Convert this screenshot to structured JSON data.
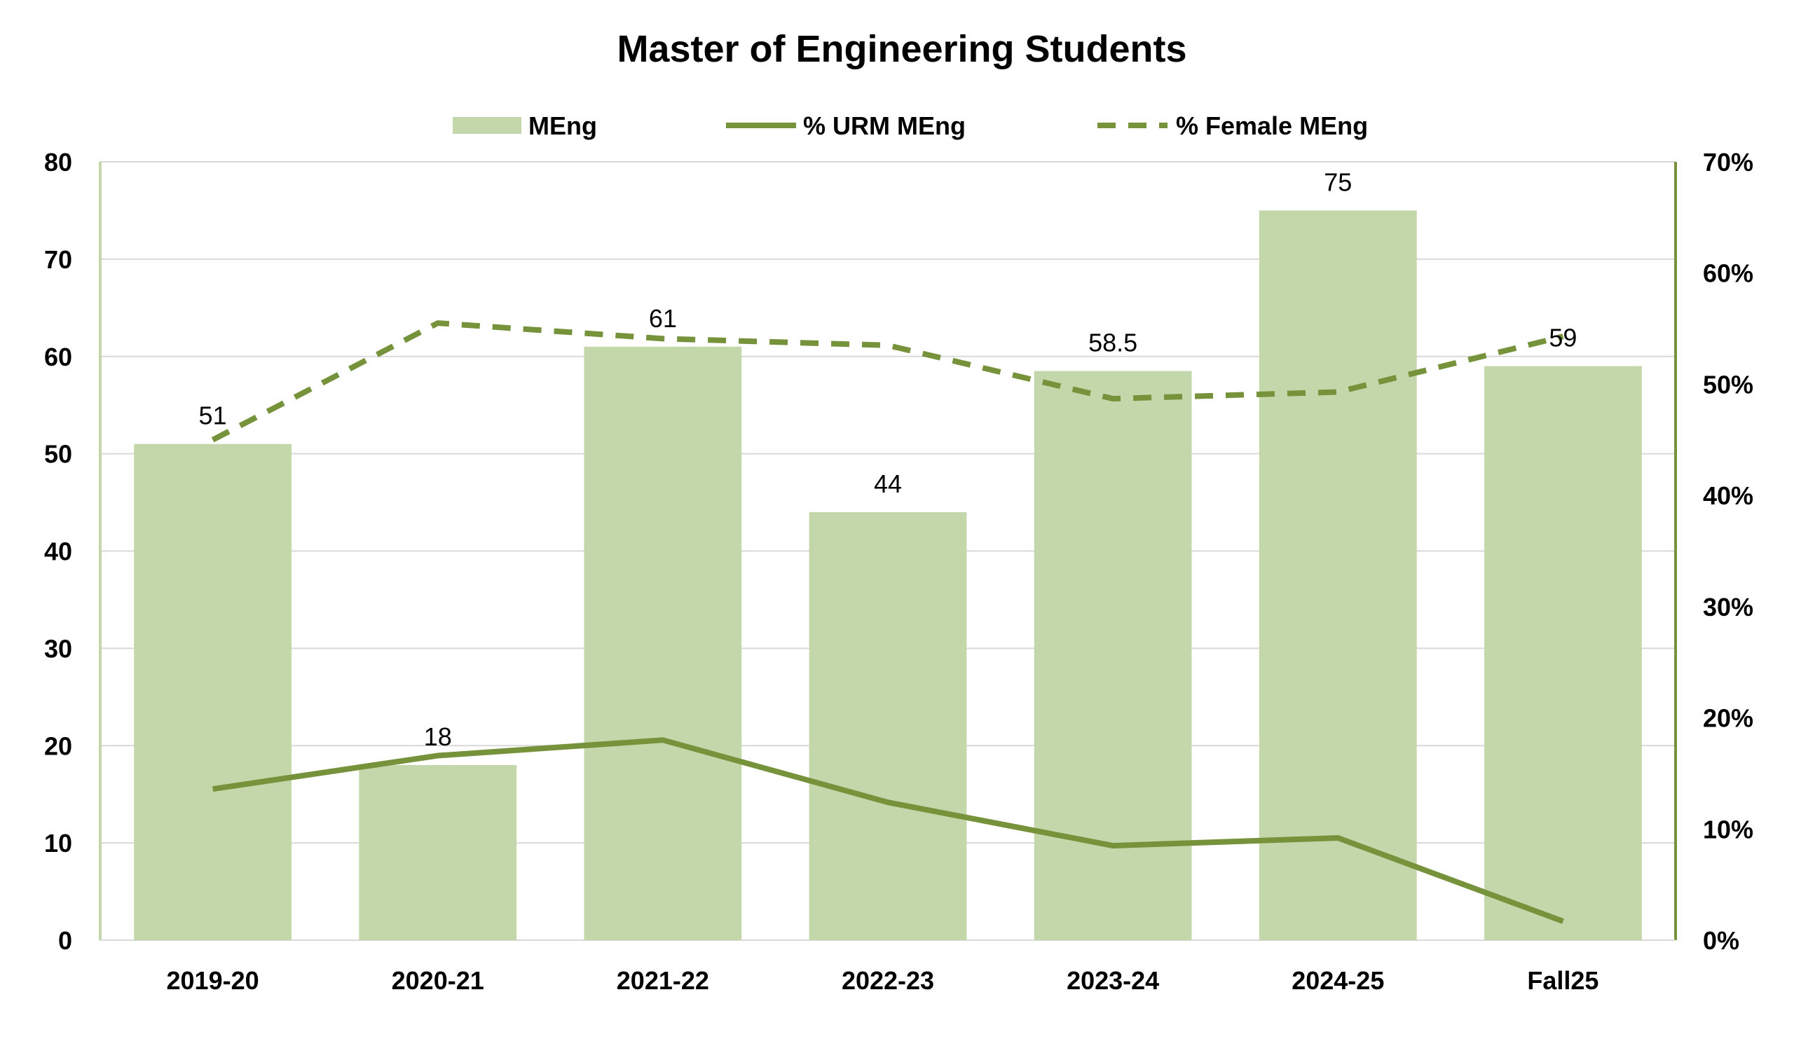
{
  "chart_data": {
    "type": "bar",
    "title": "Master of Engineering Students",
    "categories": [
      "2019-20",
      "2020-21",
      "2021-22",
      "2022-23",
      "2023-24",
      "2024-25",
      "Fall25"
    ],
    "series": [
      {
        "name": "MEng",
        "type": "bar",
        "axis": "left",
        "values": [
          51,
          18,
          61,
          44,
          58.5,
          75,
          59
        ],
        "data_labels": [
          "51",
          "18",
          "61",
          "44",
          "58.5",
          "75",
          "59"
        ],
        "color": "#c4d7ab"
      },
      {
        "name": "% URM MEng",
        "type": "line",
        "style": "solid",
        "axis": "right",
        "values": [
          13.6,
          16.6,
          18.0,
          12.4,
          8.5,
          9.2,
          1.7
        ],
        "color": "#76933c"
      },
      {
        "name": "% Female MEng",
        "type": "line",
        "style": "dashed",
        "axis": "right",
        "values": [
          45.0,
          55.5,
          54.1,
          53.5,
          48.7,
          49.3,
          54.3
        ],
        "color": "#76933c"
      }
    ],
    "ylim": [
      0,
      80
    ],
    "yticks": [
      "0",
      "10",
      "20",
      "30",
      "40",
      "50",
      "60",
      "70",
      "80"
    ],
    "y2lim": [
      0,
      70
    ],
    "y2ticks": [
      "0%",
      "10%",
      "20%",
      "30%",
      "40%",
      "50%",
      "60%",
      "70%"
    ],
    "grid": true,
    "legend": "top"
  }
}
